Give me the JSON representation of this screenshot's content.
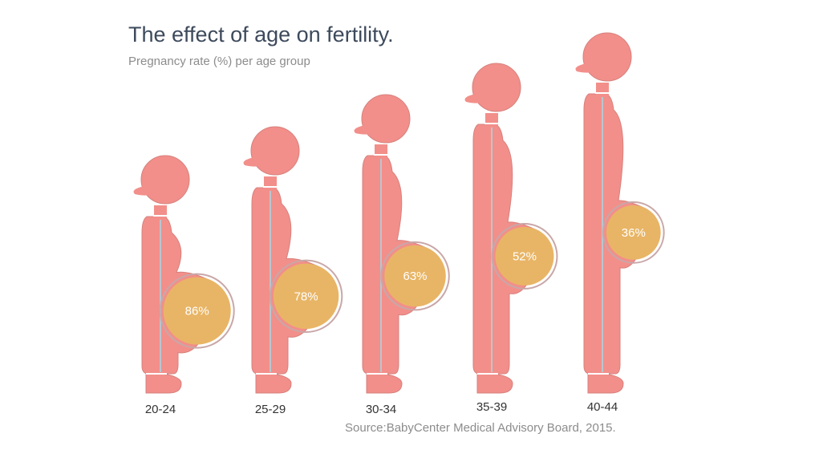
{
  "chart_data": {
    "type": "pictogram",
    "title": "The effect of age on fertility.",
    "subtitle": "Pregnancy rate (%) per age group",
    "categories": [
      "20-24",
      "25-29",
      "30-34",
      "35-39",
      "40-44"
    ],
    "values": [
      86,
      78,
      63,
      52,
      36
    ],
    "value_labels": [
      "86%",
      "78%",
      "63%",
      "52%",
      "36%"
    ],
    "source": "Source:BabyCenter Medical Advisory Board, 2015."
  },
  "colors": {
    "figure": "#f28f8a",
    "figure_outline": "#d7817d",
    "belly": "#e8b566",
    "belly_ring": "#c9a7a8",
    "spine": "#b9c6cf",
    "title": "#3d4a5c",
    "muted_text": "#8c8c8c"
  }
}
